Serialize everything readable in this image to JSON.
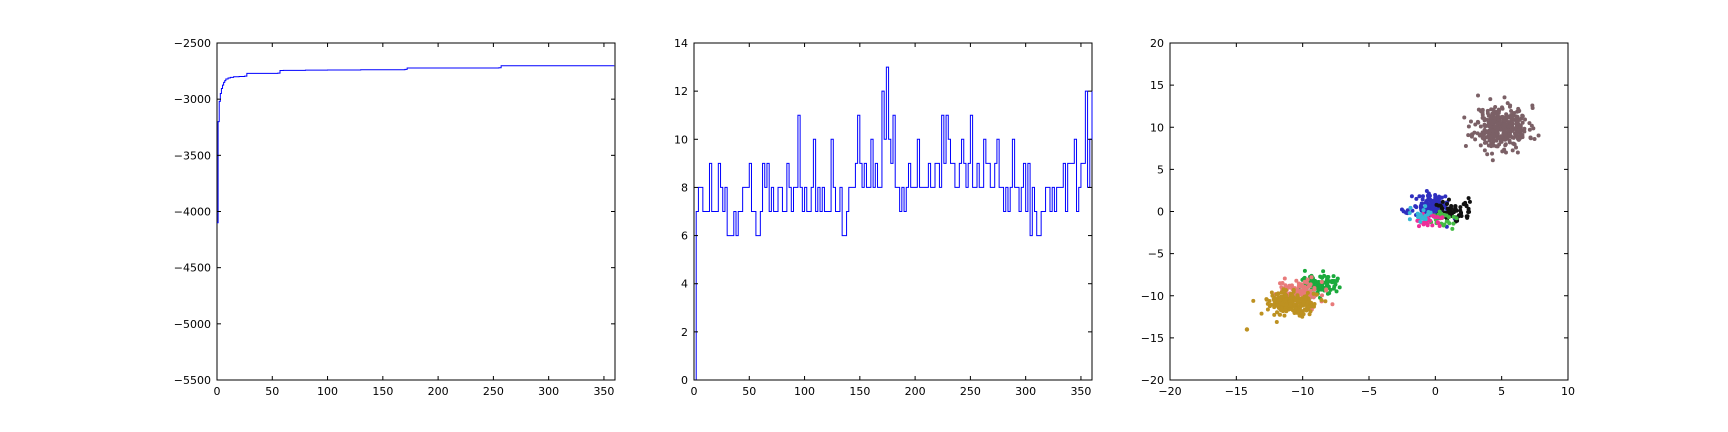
{
  "chart_data": [
    {
      "type": "line",
      "xlim": [
        0,
        360
      ],
      "ylim": [
        -5500,
        -2500
      ],
      "x_ticks": [
        0,
        50,
        100,
        150,
        200,
        250,
        300,
        350
      ],
      "y_ticks": [
        -5500,
        -5000,
        -4500,
        -4000,
        -3500,
        -3000,
        -2500
      ],
      "grid": false,
      "color": "#0000ff",
      "series": [
        {
          "x": [
            0,
            1,
            2,
            3,
            4,
            5,
            6,
            7,
            8,
            10,
            12,
            15,
            20,
            25,
            27,
            55,
            57,
            60,
            80,
            100,
            130,
            170,
            172,
            255,
            257,
            300,
            359
          ],
          "values": [
            -4100,
            -3200,
            -3020,
            -2950,
            -2905,
            -2875,
            -2850,
            -2835,
            -2820,
            -2812,
            -2806,
            -2800,
            -2798,
            -2795,
            -2770,
            -2768,
            -2745,
            -2744,
            -2742,
            -2740,
            -2738,
            -2735,
            -2722,
            -2720,
            -2702,
            -2702,
            -2700
          ]
        }
      ]
    },
    {
      "type": "line",
      "xlim": [
        0,
        360
      ],
      "ylim": [
        0,
        14
      ],
      "x_ticks": [
        0,
        50,
        100,
        150,
        200,
        250,
        300,
        350
      ],
      "y_ticks": [
        0,
        2,
        4,
        6,
        8,
        10,
        12,
        14
      ],
      "grid": false,
      "color": "#0000ff",
      "step_values": [
        0,
        7,
        8,
        8,
        7,
        7,
        7,
        9,
        7,
        7,
        7,
        9,
        8,
        7,
        8,
        6,
        6,
        6,
        7,
        6,
        7,
        7,
        8,
        8,
        8,
        9,
        7,
        7,
        6,
        6,
        7,
        9,
        8,
        9,
        7,
        8,
        7,
        7,
        8,
        8,
        7,
        7,
        9,
        8,
        7,
        8,
        8,
        11,
        8,
        7,
        8,
        7,
        7,
        8,
        10,
        7,
        8,
        7,
        8,
        7,
        7,
        7,
        10,
        8,
        7,
        7,
        8,
        6,
        6,
        7,
        8,
        8,
        8,
        9,
        11,
        9,
        8,
        9,
        8,
        8,
        10,
        8,
        9,
        8,
        8,
        12,
        10,
        13,
        10,
        9,
        11,
        8,
        8,
        7,
        8,
        7,
        8,
        9,
        8,
        8,
        8,
        10,
        8,
        8,
        8,
        8,
        9,
        8,
        8,
        9,
        9,
        8,
        11,
        9,
        11,
        10,
        9,
        9,
        8,
        8,
        9,
        10,
        9,
        8,
        9,
        11,
        8,
        8,
        9,
        8,
        8,
        10,
        9,
        9,
        8,
        8,
        9,
        10,
        8,
        8,
        7,
        8,
        7,
        8,
        10,
        8,
        8,
        7,
        8,
        9,
        7,
        9,
        6,
        8,
        7,
        6,
        6,
        7,
        7,
        8,
        8,
        7,
        8,
        7,
        8,
        8,
        8,
        9,
        7,
        9,
        9,
        9,
        10,
        7,
        8,
        9,
        9,
        12,
        8,
        10,
        12
      ]
    },
    {
      "type": "scatter",
      "xlim": [
        -20,
        10
      ],
      "ylim": [
        -20,
        20
      ],
      "x_ticks": [
        -20,
        -15,
        -10,
        -5,
        0,
        5,
        10
      ],
      "y_ticks": [
        -20,
        -15,
        -10,
        -5,
        0,
        5,
        10,
        15,
        20
      ],
      "grid": false,
      "clusters": [
        {
          "color": "#7b6066",
          "center": [
            5.0,
            10.0
          ],
          "spread": [
            1.0,
            1.3
          ],
          "count": 350,
          "seed": 11
        },
        {
          "color": "#2f2fbf",
          "center": [
            -0.2,
            0.5
          ],
          "spread": [
            0.75,
            0.75
          ],
          "count": 140,
          "seed": 21
        },
        {
          "color": "#111111",
          "center": [
            1.3,
            0.0
          ],
          "spread": [
            0.75,
            0.65
          ],
          "count": 60,
          "seed": 31
        },
        {
          "color": "#44bb44",
          "center": [
            0.6,
            -0.9
          ],
          "spread": [
            0.6,
            0.5
          ],
          "count": 30,
          "seed": 41
        },
        {
          "color": "#ee2e99",
          "center": [
            -0.6,
            -1.0
          ],
          "spread": [
            0.6,
            0.5
          ],
          "count": 30,
          "seed": 51
        },
        {
          "color": "#37b7d7",
          "center": [
            -1.2,
            -0.3
          ],
          "spread": [
            0.5,
            0.5
          ],
          "count": 20,
          "seed": 61
        },
        {
          "color": "#1aaa3c",
          "center": [
            -8.7,
            -8.7
          ],
          "spread": [
            0.8,
            0.7
          ],
          "count": 110,
          "seed": 71
        },
        {
          "color": "#e87a7a",
          "center": [
            -10.3,
            -9.7
          ],
          "spread": [
            0.8,
            0.8
          ],
          "count": 150,
          "seed": 81
        },
        {
          "color": "#bd9121",
          "center": [
            -10.9,
            -11.0
          ],
          "spread": [
            0.9,
            0.7
          ],
          "count": 220,
          "seed": 91
        }
      ],
      "points": [
        {
          "x": -14.2,
          "y": -14.0,
          "color": "#bd9121"
        }
      ]
    }
  ]
}
